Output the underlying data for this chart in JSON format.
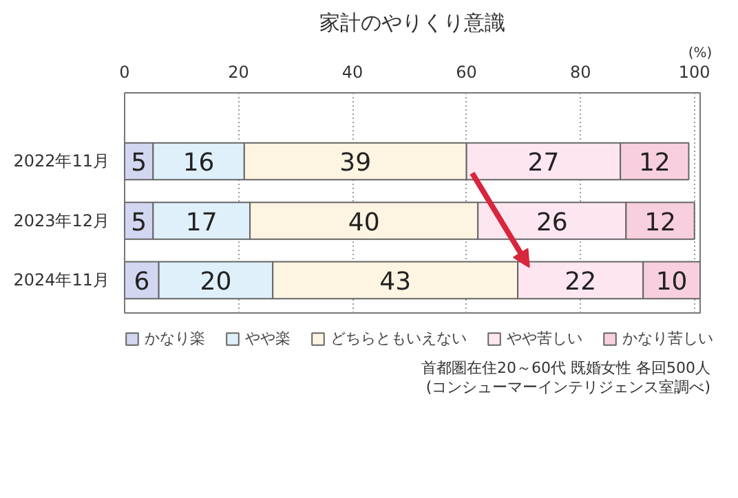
{
  "chart_data": {
    "type": "bar",
    "orientation": "horizontal",
    "stacked": true,
    "title": "家計のやりくり意識",
    "xlabel": "(%)",
    "categories": [
      "2022年11月",
      "2023年12月",
      "2024年11月"
    ],
    "series": [
      {
        "name": "かなり楽",
        "color": "#d3d6f0",
        "values": [
          5,
          5,
          6
        ]
      },
      {
        "name": "やや楽",
        "color": "#dff0fb",
        "values": [
          16,
          17,
          20
        ]
      },
      {
        "name": "どちらともいえない",
        "color": "#fdf4e1",
        "values": [
          39,
          40,
          43
        ]
      },
      {
        "name": "やや苦しい",
        "color": "#fde6ef",
        "values": [
          27,
          26,
          22
        ]
      },
      {
        "name": "かなり苦しい",
        "color": "#f8cfde",
        "values": [
          12,
          12,
          10
        ]
      }
    ],
    "xlim": [
      0,
      101
    ],
    "xticks": [
      0,
      20,
      40,
      60,
      80,
      100
    ],
    "grid": "x",
    "legend": "bottom",
    "data_labels": true,
    "annotations": [
      "首都圏在住20～60代 既婚女性 各回500人",
      "(コンシューマーインテリジェンス室調べ)"
    ]
  }
}
